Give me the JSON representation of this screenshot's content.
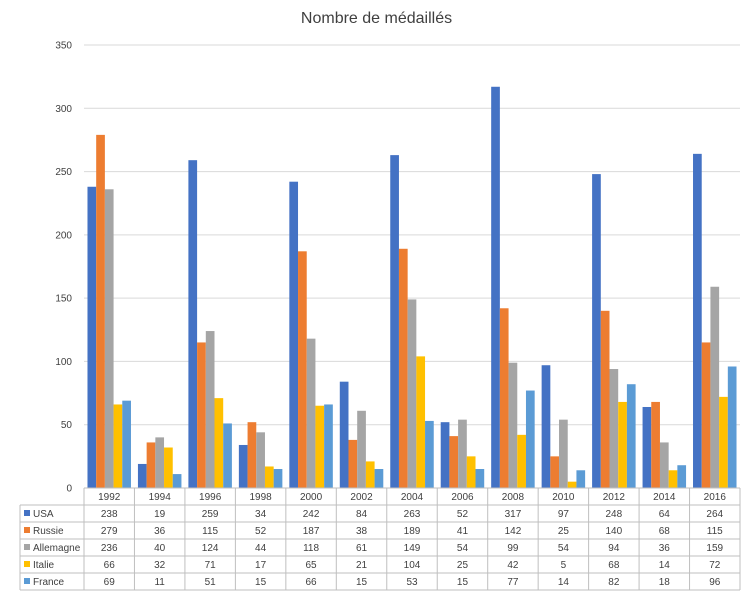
{
  "chart_data": {
    "type": "bar",
    "title": "Nombre de médaillés",
    "xlabel": "",
    "ylabel": "",
    "ylim": [
      0,
      350
    ],
    "yticks": [
      0,
      50,
      100,
      150,
      200,
      250,
      300,
      350
    ],
    "grid": true,
    "legend": "data-table",
    "categories": [
      "1992",
      "1994",
      "1996",
      "1998",
      "2000",
      "2002",
      "2004",
      "2006",
      "2008",
      "2010",
      "2012",
      "2014",
      "2016"
    ],
    "series": [
      {
        "name": "USA",
        "color": "#4472C4",
        "values": [
          238,
          19,
          259,
          34,
          242,
          84,
          263,
          52,
          317,
          97,
          248,
          64,
          264
        ]
      },
      {
        "name": "Russie",
        "color": "#ED7D31",
        "values": [
          279,
          36,
          115,
          52,
          187,
          38,
          189,
          41,
          142,
          25,
          140,
          68,
          115
        ]
      },
      {
        "name": "Allemagne",
        "color": "#A5A5A5",
        "values": [
          236,
          40,
          124,
          44,
          118,
          61,
          149,
          54,
          99,
          54,
          94,
          36,
          159
        ]
      },
      {
        "name": "Italie",
        "color": "#FFC000",
        "values": [
          66,
          32,
          71,
          17,
          65,
          21,
          104,
          25,
          42,
          5,
          68,
          14,
          72
        ]
      },
      {
        "name": "France",
        "color": "#5B9BD5",
        "values": [
          69,
          11,
          51,
          15,
          66,
          15,
          53,
          15,
          77,
          14,
          82,
          18,
          96
        ]
      }
    ]
  }
}
